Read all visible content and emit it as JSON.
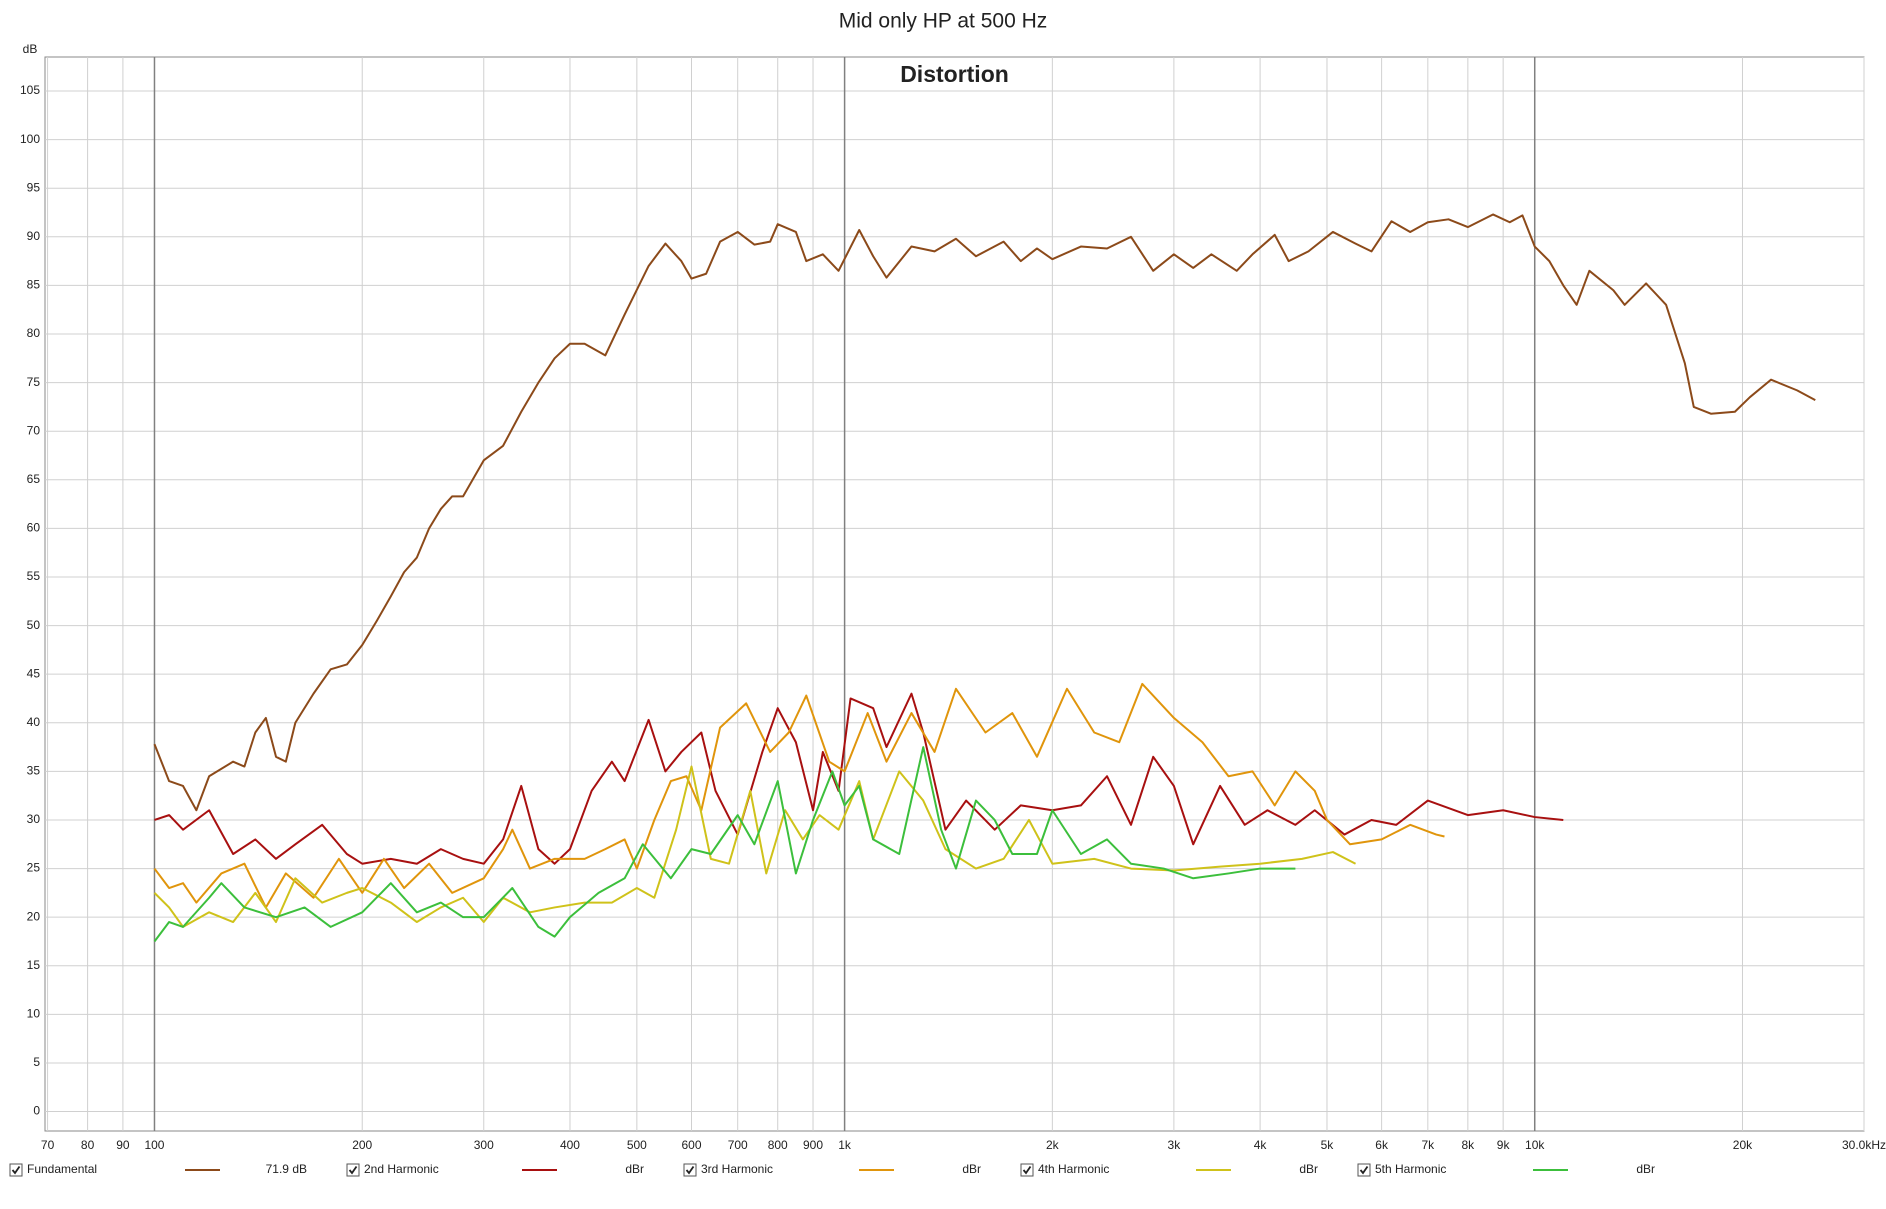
{
  "chart_data": {
    "type": "line",
    "title": "Mid only HP at 500 Hz",
    "subtitle": "Distortion",
    "ylabel": "dB",
    "xscale": "log",
    "grid": true,
    "legend": "bottom",
    "xlim": [
      69.4,
      30000
    ],
    "ylim": [
      -2,
      108.5
    ],
    "xticks": [
      70,
      80,
      90,
      100,
      200,
      300,
      400,
      500,
      600,
      700,
      800,
      900,
      {
        "value": 1000,
        "label": "1k"
      },
      {
        "value": 2000,
        "label": "2k"
      },
      {
        "value": 3000,
        "label": "3k"
      },
      {
        "value": 4000,
        "label": "4k"
      },
      {
        "value": 5000,
        "label": "5k"
      },
      {
        "value": 6000,
        "label": "6k"
      },
      {
        "value": 7000,
        "label": "7k"
      },
      {
        "value": 8000,
        "label": "8k"
      },
      {
        "value": 9000,
        "label": "9k"
      },
      {
        "value": 10000,
        "label": "10k"
      },
      {
        "value": 20000,
        "label": "20k"
      },
      {
        "value": 30000,
        "label": "30.0kHz"
      }
    ],
    "yticks": [
      0,
      5,
      10,
      15,
      20,
      25,
      30,
      35,
      40,
      45,
      50,
      55,
      60,
      65,
      70,
      75,
      80,
      85,
      90,
      95,
      100,
      105
    ],
    "series": [
      {
        "name": "Fundamental",
        "readout": "71.9 dB",
        "color": "#8c4a1a",
        "x": [
          100,
          105,
          110,
          115,
          120,
          130,
          135,
          140,
          145,
          150,
          155,
          160,
          170,
          180,
          190,
          200,
          210,
          220,
          230,
          240,
          250,
          260,
          270,
          280,
          300,
          320,
          340,
          360,
          380,
          400,
          420,
          450,
          480,
          520,
          550,
          580,
          600,
          630,
          660,
          700,
          740,
          780,
          800,
          850,
          880,
          930,
          980,
          1050,
          1100,
          1150,
          1250,
          1350,
          1450,
          1550,
          1700,
          1800,
          1900,
          2000,
          2200,
          2400,
          2600,
          2800,
          3000,
          3200,
          3400,
          3700,
          3900,
          4200,
          4400,
          4700,
          5100,
          5500,
          5800,
          6200,
          6600,
          7000,
          7500,
          8000,
          8700,
          9200,
          9600,
          10000,
          10500,
          11000,
          11500,
          12000,
          13000,
          13500,
          14500,
          15500,
          16500,
          17000,
          18000,
          19500,
          20500,
          22000,
          24000,
          25500
        ],
        "values": [
          37.8,
          34,
          33.5,
          31,
          34.5,
          36,
          35.5,
          39,
          40.5,
          36.5,
          36,
          40,
          43,
          45.5,
          46,
          48,
          50.5,
          53,
          55.5,
          57,
          60,
          62,
          63.3,
          63.3,
          67,
          68.5,
          72,
          75,
          77.5,
          79,
          79,
          77.8,
          82,
          87,
          89.3,
          87.5,
          85.7,
          86.2,
          89.5,
          90.5,
          89.2,
          89.5,
          91.3,
          90.5,
          87.5,
          88.2,
          86.5,
          90.7,
          88,
          85.8,
          89,
          88.5,
          89.8,
          88,
          89.5,
          87.5,
          88.8,
          87.7,
          89,
          88.8,
          90,
          86.5,
          88.2,
          86.8,
          88.2,
          86.5,
          88.2,
          90.2,
          87.5,
          88.5,
          90.5,
          89.3,
          88.5,
          91.6,
          90.5,
          91.5,
          91.8,
          91,
          92.3,
          91.5,
          92.2,
          89,
          87.5,
          85,
          83,
          86.5,
          84.5,
          83,
          85.2,
          83,
          77,
          72.5,
          71.8,
          72,
          73.5,
          75.3,
          74.2,
          73.2
        ]
      },
      {
        "name": "2nd Harmonic",
        "readout": "dBr",
        "color": "#a81010",
        "x": [
          100,
          105,
          110,
          120,
          130,
          140,
          150,
          160,
          175,
          190,
          200,
          220,
          240,
          260,
          280,
          300,
          320,
          340,
          360,
          380,
          400,
          430,
          460,
          480,
          520,
          550,
          580,
          620,
          650,
          700,
          760,
          800,
          850,
          900,
          930,
          980,
          1020,
          1100,
          1150,
          1250,
          1300,
          1400,
          1500,
          1650,
          1800,
          2000,
          2200,
          2400,
          2600,
          2800,
          3000,
          3200,
          3500,
          3800,
          4100,
          4500,
          4800,
          5300,
          5800,
          6300,
          7000,
          8000,
          9000,
          10000,
          11000
        ],
        "values": [
          30,
          30.5,
          29,
          31,
          26.5,
          28,
          26,
          27.5,
          29.5,
          26.5,
          25.5,
          26,
          25.5,
          27,
          26,
          25.5,
          28,
          33.5,
          27,
          25.5,
          27,
          33,
          36,
          34,
          40.3,
          35,
          37,
          39,
          33,
          28.5,
          37,
          41.5,
          38,
          31,
          37,
          33,
          42.5,
          41.5,
          37.5,
          43,
          39,
          29,
          32,
          29,
          31.5,
          31,
          31.5,
          34.5,
          29.5,
          36.5,
          33.5,
          27.5,
          33.5,
          29.5,
          31,
          29.5,
          31,
          28.5,
          30,
          29.5,
          32,
          30.5,
          31,
          30.3,
          30
        ]
      },
      {
        "name": "3rd Harmonic",
        "readout": "dBr",
        "color": "#e0950c",
        "x": [
          100,
          105,
          110,
          115,
          125,
          135,
          145,
          155,
          170,
          185,
          200,
          215,
          230,
          250,
          270,
          300,
          320,
          330,
          350,
          380,
          420,
          450,
          480,
          500,
          530,
          560,
          590,
          620,
          660,
          720,
          780,
          830,
          880,
          950,
          1000,
          1080,
          1150,
          1250,
          1350,
          1450,
          1600,
          1750,
          1900,
          2100,
          2300,
          2500,
          2700,
          3000,
          3300,
          3600,
          3900,
          4200,
          4500,
          4800,
          5000,
          5400,
          6000,
          6600,
          7200,
          7400
        ],
        "values": [
          25,
          23,
          23.5,
          21.5,
          24.5,
          25.5,
          21,
          24.5,
          22,
          26,
          22.5,
          26,
          23,
          25.5,
          22.5,
          24,
          27,
          29,
          25,
          26,
          26,
          27,
          28,
          25,
          30,
          34,
          34.5,
          31,
          39.5,
          42,
          37,
          39,
          42.8,
          36,
          35,
          41,
          36,
          41,
          37,
          43.5,
          39,
          41,
          36.5,
          43.5,
          39,
          38,
          44,
          40.5,
          38,
          34.5,
          35,
          31.5,
          35,
          33,
          30,
          27.5,
          28,
          29.5,
          28.5,
          28.3
        ]
      },
      {
        "name": "4th Harmonic",
        "readout": "dBr",
        "color": "#cfc21a",
        "x": [
          100,
          105,
          110,
          120,
          130,
          140,
          150,
          160,
          175,
          190,
          200,
          220,
          240,
          260,
          280,
          300,
          320,
          350,
          380,
          420,
          460,
          500,
          530,
          570,
          600,
          640,
          680,
          730,
          770,
          820,
          870,
          920,
          980,
          1050,
          1100,
          1200,
          1300,
          1400,
          1550,
          1700,
          1850,
          2000,
          2300,
          2600,
          3000,
          3500,
          4000,
          4600,
          5100,
          5500
        ],
        "values": [
          22.5,
          21,
          19,
          20.5,
          19.5,
          22.5,
          19.5,
          24,
          21.5,
          22.5,
          23,
          21.5,
          19.5,
          21,
          22,
          19.5,
          22,
          20.5,
          21,
          21.5,
          21.5,
          23,
          22,
          29,
          35.5,
          26,
          25.5,
          33,
          24.5,
          31,
          28,
          30.5,
          29,
          34,
          28,
          35,
          32,
          27,
          25,
          26,
          30,
          25.5,
          26,
          25,
          24.8,
          25.2,
          25.5,
          26,
          26.7,
          25.5
        ]
      },
      {
        "name": "5th Harmonic",
        "readout": "dBr",
        "color": "#3cbf3c",
        "x": [
          100,
          105,
          110,
          120,
          125,
          135,
          150,
          165,
          180,
          200,
          220,
          240,
          260,
          280,
          300,
          330,
          360,
          380,
          400,
          440,
          480,
          510,
          560,
          600,
          640,
          700,
          740,
          800,
          850,
          900,
          960,
          1000,
          1050,
          1100,
          1200,
          1300,
          1380,
          1450,
          1550,
          1650,
          1750,
          1900,
          2000,
          2200,
          2400,
          2600,
          2900,
          3200,
          3600,
          4000,
          4500
        ],
        "values": [
          17.5,
          19.5,
          19,
          22,
          23.5,
          21,
          20,
          21,
          19,
          20.5,
          23.5,
          20.5,
          21.5,
          20,
          20,
          23,
          19,
          18,
          20,
          22.5,
          24,
          27.5,
          24,
          27,
          26.5,
          30.5,
          27.5,
          34,
          24.5,
          30,
          35,
          31.5,
          33.5,
          28,
          26.5,
          37.5,
          29,
          25,
          32,
          30,
          26.5,
          26.5,
          31,
          26.5,
          28,
          25.5,
          25,
          24,
          24.5,
          25,
          25
        ]
      }
    ]
  }
}
